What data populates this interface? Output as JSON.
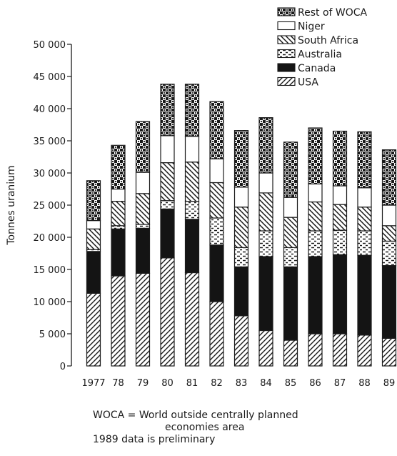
{
  "chart_data": {
    "type": "bar",
    "stacked": true,
    "ylabel": "Tonnes uranium",
    "ylim": [
      0,
      50000
    ],
    "y_ticks": [
      "0",
      "5 000",
      "10 000",
      "15 000",
      "20 000",
      "25 000",
      "30 000",
      "35 000",
      "40 000",
      "45 000",
      "50 000"
    ],
    "categories": [
      "1977",
      "78",
      "79",
      "80",
      "81",
      "82",
      "83",
      "84",
      "85",
      "86",
      "87",
      "88",
      "89"
    ],
    "series": [
      {
        "name": "USA",
        "pattern": "diagonal",
        "values": [
          11300,
          14000,
          14400,
          16800,
          14500,
          10000,
          7800,
          5500,
          4000,
          5000,
          5000,
          4800,
          4300
        ]
      },
      {
        "name": "Canada",
        "pattern": "solid",
        "values": [
          6500,
          7300,
          7000,
          7600,
          8300,
          8800,
          7600,
          11500,
          11400,
          12000,
          12300,
          12400,
          11300
        ]
      },
      {
        "name": "Australia",
        "pattern": "dashes",
        "values": [
          300,
          500,
          600,
          1300,
          2800,
          4200,
          3000,
          4000,
          3000,
          4000,
          3800,
          3800,
          3800
        ]
      },
      {
        "name": "South Africa",
        "pattern": "crosshatch",
        "values": [
          3200,
          3800,
          4800,
          5900,
          6100,
          5500,
          6300,
          5900,
          4700,
          4500,
          4000,
          3700,
          2400
        ]
      },
      {
        "name": "Niger",
        "pattern": "blank",
        "values": [
          1300,
          1900,
          3300,
          4200,
          4000,
          3700,
          3100,
          3100,
          3100,
          2800,
          2900,
          3000,
          3200
        ]
      },
      {
        "name": "Rest of WOCA",
        "pattern": "checker",
        "values": [
          6200,
          6800,
          7900,
          8000,
          8100,
          8900,
          8800,
          8600,
          8600,
          8700,
          8500,
          8700,
          8600
        ]
      }
    ],
    "legend_position": "top-right",
    "legend_order": [
      "Rest of WOCA",
      "Niger",
      "South Africa",
      "Australia",
      "Canada",
      "USA"
    ],
    "grid": false
  },
  "notes": {
    "woca": "WOCA = World outside centrally planned",
    "woca_cont": "economies area",
    "preliminary": "1989 data is preliminary"
  }
}
